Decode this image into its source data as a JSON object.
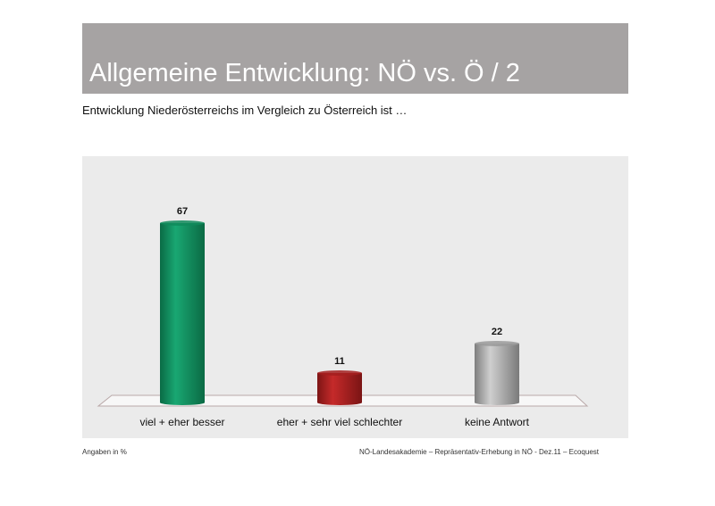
{
  "slide": {
    "title": "Allgemeine Entwicklung: NÖ vs. Ö / 2",
    "subtitle": "Entwicklung Niederösterreichs im Vergleich zu Österreich ist …",
    "footnote_left": "Angaben in %",
    "footnote_right": "NÖ-Landesakademie – Repräsentativ-Erhebung in NÖ - Dez.11 – Ecoquest"
  },
  "colors": {
    "title_bar": "#a6a3a3",
    "chart_background": "#ebebeb",
    "bar_green": "#0f8a5a",
    "bar_red": "#a31f1f",
    "bar_gray": "#9a9a9a"
  },
  "chart_data": {
    "type": "bar",
    "title": "",
    "xlabel": "",
    "ylabel": "",
    "categories": [
      "viel + eher besser",
      "eher + sehr viel schlechter",
      "keine Antwort"
    ],
    "values": [
      67,
      11,
      22
    ],
    "data_labels": [
      "67",
      "11",
      "22"
    ],
    "bar_colors": [
      "#0f8a5a",
      "#a31f1f",
      "#9a9a9a"
    ],
    "ylim": [
      0,
      70
    ],
    "grid": false,
    "legend": "none"
  }
}
